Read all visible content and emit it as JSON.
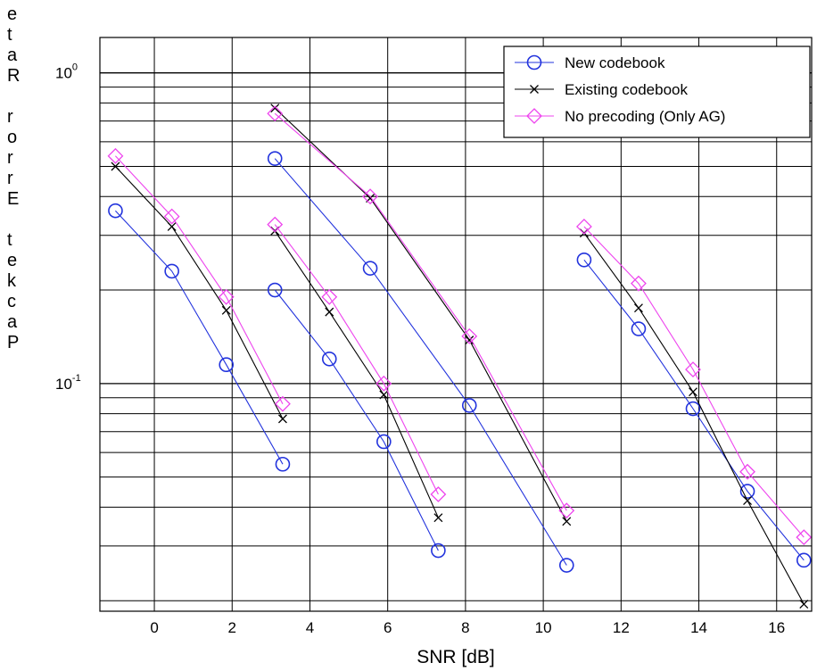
{
  "chart_data": {
    "type": "line",
    "title": "",
    "xlabel": "SNR [dB]",
    "ylabel": "Packet Error Rate",
    "xlim": [
      -1.4,
      16.9
    ],
    "ylim": [
      0.0185,
      1.3
    ],
    "yscale": "log",
    "grid": true,
    "legend_position": "top-right",
    "x_ticks": [
      0,
      2,
      4,
      6,
      8,
      10,
      12,
      14,
      16
    ],
    "x_tick_labels": [
      "0",
      "2",
      "4",
      "6",
      "8",
      "10",
      "12",
      "14",
      "16"
    ],
    "y_ticks": [
      1,
      0.1
    ],
    "y_tick_labels": [
      {
        "base": "10",
        "exp": "0"
      },
      {
        "base": "10",
        "exp": "-1"
      }
    ],
    "series": [
      {
        "name": "New codebook",
        "color": "#2233dd",
        "marker": "circle",
        "groups": [
          {
            "x": [
              -1.0,
              0.45,
              1.85,
              3.3
            ],
            "y": [
              0.36,
              0.23,
              0.115,
              0.055
            ]
          },
          {
            "x": [
              3.1,
              4.5,
              5.9,
              7.3
            ],
            "y": [
              0.2,
              0.12,
              0.065,
              0.029
            ]
          },
          {
            "x": [
              3.1,
              5.55,
              8.1,
              10.6
            ],
            "y": [
              0.53,
              0.235,
              0.085,
              0.026
            ]
          },
          {
            "x": [
              11.05,
              12.45,
              13.85,
              15.25,
              16.7
            ],
            "y": [
              0.25,
              0.15,
              0.083,
              0.045,
              0.027
            ]
          }
        ]
      },
      {
        "name": "Existing codebook",
        "color": "#000000",
        "marker": "x",
        "groups": [
          {
            "x": [
              -1.0,
              0.45,
              1.85,
              3.3
            ],
            "y": [
              0.5,
              0.32,
              0.172,
              0.077
            ]
          },
          {
            "x": [
              3.1,
              4.5,
              5.9,
              7.3
            ],
            "y": [
              0.31,
              0.17,
              0.092,
              0.037
            ]
          },
          {
            "x": [
              3.1,
              5.55,
              8.1,
              10.6
            ],
            "y": [
              0.77,
              0.395,
              0.138,
              0.036
            ]
          },
          {
            "x": [
              11.05,
              12.45,
              13.85,
              15.25,
              16.7
            ],
            "y": [
              0.305,
              0.175,
              0.094,
              0.042,
              0.0195
            ]
          }
        ]
      },
      {
        "name": "No precoding (Only AG)",
        "color": "#ee44ee",
        "marker": "diamond",
        "groups": [
          {
            "x": [
              -1.0,
              0.45,
              1.85,
              3.3
            ],
            "y": [
              0.54,
              0.345,
              0.19,
              0.086
            ]
          },
          {
            "x": [
              3.1,
              4.5,
              5.9,
              7.3
            ],
            "y": [
              0.325,
              0.19,
              0.1,
              0.044
            ]
          },
          {
            "x": [
              3.1,
              5.55,
              8.1,
              10.6
            ],
            "y": [
              0.74,
              0.4,
              0.142,
              0.039
            ]
          },
          {
            "x": [
              11.05,
              12.45,
              13.85,
              15.25,
              16.7
            ],
            "y": [
              0.32,
              0.21,
              0.111,
              0.052,
              0.032
            ]
          }
        ]
      }
    ]
  }
}
